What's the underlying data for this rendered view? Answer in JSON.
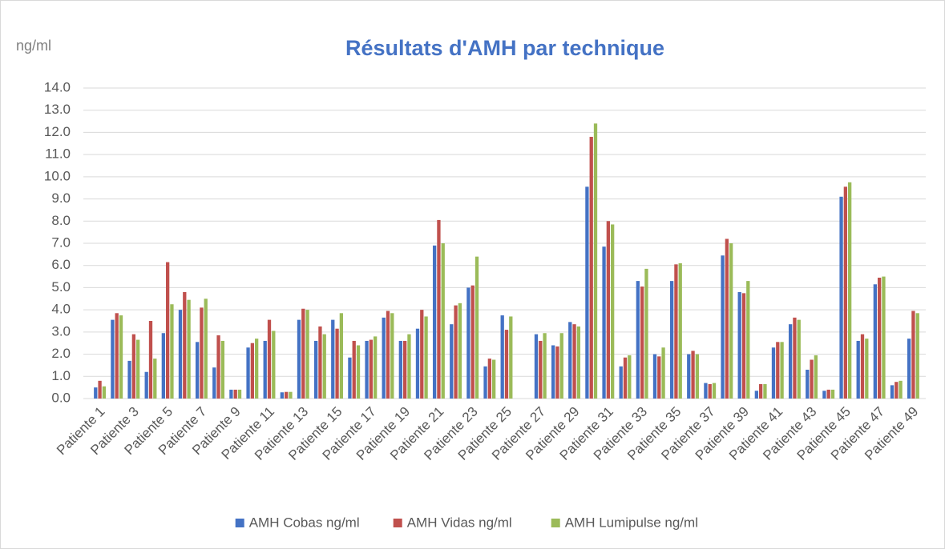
{
  "chart_data": {
    "type": "bar",
    "title": "Résultats d'AMH par technique",
    "y_axis_label": "ng/ml",
    "categories": [
      "Patiente 1",
      null,
      "Patiente 3",
      null,
      "Patiente 5",
      null,
      "Patiente 7",
      null,
      "Patiente 9",
      null,
      "Patiente 11",
      null,
      "Patiente 13",
      null,
      "Patiente 15",
      null,
      "Patiente 17",
      null,
      "Patiente 19",
      null,
      "Patiente 21",
      null,
      "Patiente 23",
      null,
      "Patiente 25",
      null,
      "Patiente 27",
      null,
      "Patiente 29",
      null,
      "Patiente 31",
      null,
      "Patiente 33",
      null,
      "Patiente 35",
      null,
      "Patiente 37",
      null,
      "Patiente 39",
      null,
      "Patiente 41",
      null,
      "Patiente 43",
      null,
      "Patiente 45",
      null,
      "Patiente 47",
      null,
      "Patiente 49"
    ],
    "series": [
      {
        "name": "AMH Cobas ng/ml",
        "color": "#4472c4",
        "values": [
          0.5,
          3.55,
          1.7,
          1.2,
          2.95,
          4.0,
          2.55,
          1.4,
          0.4,
          2.3,
          2.6,
          0.28,
          3.55,
          2.6,
          3.55,
          1.85,
          2.6,
          3.65,
          2.6,
          3.15,
          6.9,
          3.35,
          5.0,
          1.45,
          3.75,
          null,
          2.9,
          2.4,
          3.45,
          9.55,
          6.85,
          1.45,
          5.3,
          2.0,
          5.3,
          2.0,
          0.7,
          6.45,
          4.8,
          0.35,
          2.3,
          3.35,
          1.3,
          0.35,
          9.1,
          2.6,
          5.15,
          0.6,
          2.7
        ]
      },
      {
        "name": "AMH Vidas ng/ml",
        "color": "#c0504d",
        "values": [
          0.8,
          3.85,
          2.9,
          3.5,
          6.15,
          4.8,
          4.1,
          2.85,
          0.4,
          2.5,
          3.55,
          0.3,
          4.05,
          3.25,
          3.15,
          2.6,
          2.65,
          3.95,
          2.6,
          4.0,
          8.05,
          4.2,
          5.1,
          1.8,
          3.1,
          null,
          2.6,
          2.35,
          3.35,
          11.8,
          8.0,
          1.85,
          5.05,
          1.9,
          6.05,
          2.15,
          0.65,
          7.2,
          4.75,
          0.65,
          2.55,
          3.65,
          1.75,
          0.4,
          9.55,
          2.9,
          5.45,
          0.75,
          3.95
        ]
      },
      {
        "name": "AMH Lumipulse ng/ml",
        "color": "#9bbb59",
        "values": [
          0.55,
          3.75,
          2.65,
          1.8,
          4.25,
          4.45,
          4.5,
          2.6,
          0.4,
          2.7,
          3.05,
          0.3,
          4.0,
          2.9,
          3.85,
          2.4,
          2.8,
          3.85,
          2.9,
          3.7,
          7.0,
          4.3,
          6.4,
          1.75,
          3.7,
          null,
          2.95,
          2.95,
          3.25,
          12.4,
          7.85,
          1.95,
          5.85,
          2.3,
          6.1,
          2.0,
          0.7,
          7.0,
          5.3,
          0.65,
          2.55,
          3.55,
          1.95,
          0.4,
          9.75,
          2.7,
          5.5,
          0.8,
          3.85
        ]
      }
    ],
    "ylim": [
      0,
      14
    ],
    "yticks": [
      {
        "value": 0,
        "label": "0.0"
      },
      {
        "value": 1,
        "label": "1.0"
      },
      {
        "value": 2,
        "label": "2.0"
      },
      {
        "value": 3,
        "label": "3.0"
      },
      {
        "value": 4,
        "label": "4.0"
      },
      {
        "value": 5,
        "label": "5.0"
      },
      {
        "value": 6,
        "label": "6.0"
      },
      {
        "value": 7,
        "label": "7.0"
      },
      {
        "value": 8,
        "label": "8.0"
      },
      {
        "value": 9,
        "label": "9.0"
      },
      {
        "value": 10,
        "label": "10.0"
      },
      {
        "value": 11,
        "label": "11.0"
      },
      {
        "value": 12,
        "label": "12.0"
      },
      {
        "value": 13,
        "label": "13.0"
      },
      {
        "value": 14,
        "label": "14.0"
      }
    ],
    "grid": true,
    "legend": "bottom"
  }
}
